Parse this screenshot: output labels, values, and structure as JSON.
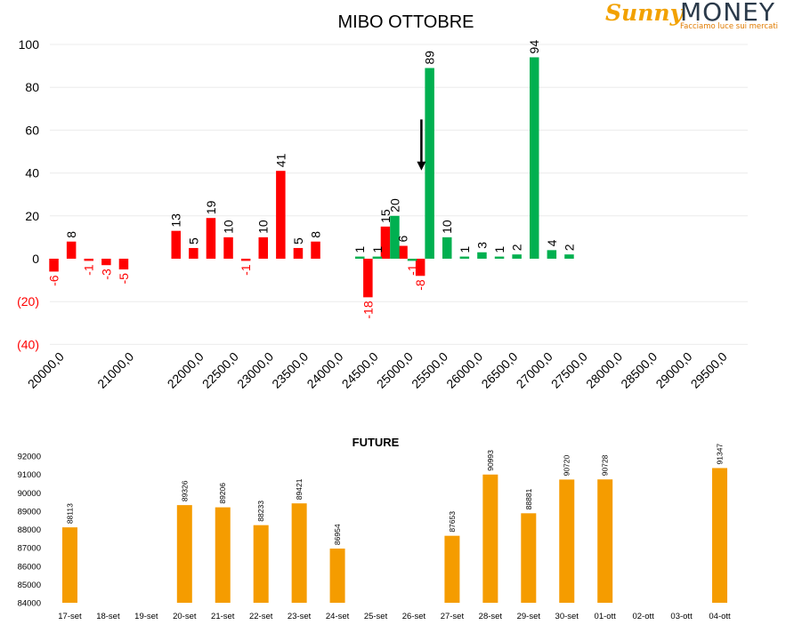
{
  "logo": {
    "brand_part1": "Sunny",
    "brand_part2": "MONEY",
    "tagline": "Facciamo luce sui mercati"
  },
  "colors": {
    "put": "#ff0000",
    "call": "#00b050",
    "future": "#f59c00",
    "negative_label": "#ff0000",
    "text": "#000000",
    "grid": "#ececec"
  },
  "chart_data": [
    {
      "type": "bar",
      "title": "MIBO OTTOBRE",
      "xlabel": "",
      "ylabel": "",
      "ylim": [
        -40,
        100
      ],
      "yticks": [
        {
          "value": 100,
          "label": "100"
        },
        {
          "value": 80,
          "label": "80"
        },
        {
          "value": 60,
          "label": "60"
        },
        {
          "value": 40,
          "label": "40"
        },
        {
          "value": 20,
          "label": "20"
        },
        {
          "value": 0,
          "label": "0"
        },
        {
          "value": -20,
          "label": "(20)"
        },
        {
          "value": -40,
          "label": "(40)"
        }
      ],
      "categories": [
        "20000,0",
        "20250,0",
        "20500,0",
        "20750,0",
        "21000,0",
        "21250,0",
        "21500,0",
        "21750,0",
        "22000,0",
        "22250,0",
        "22500,0",
        "22750,0",
        "23000,0",
        "23250,0",
        "23500,0",
        "23750,0",
        "24000,0",
        "24250,0",
        "24500,0",
        "24750,0",
        "25000,0",
        "25250,0",
        "25500,0",
        "25750,0",
        "26000,0",
        "26250,0",
        "26500,0",
        "26750,0",
        "27000,0",
        "27250,0",
        "27500,0",
        "27750,0",
        "28000,0",
        "28250,0",
        "28500,0",
        "28750,0",
        "29000,0",
        "29250,0",
        "29500,0",
        "29750,0"
      ],
      "xtick_labels": [
        "20000,0",
        "21000,0",
        "22000,0",
        "22500,0",
        "23000,0",
        "23500,0",
        "24000,0",
        "24500,0",
        "25000,0",
        "25500,0",
        "26000,0",
        "26500,0",
        "27000,0",
        "27500,0",
        "28000,0",
        "28500,0",
        "29000,0",
        "29500,0"
      ],
      "series": [
        {
          "name": "",
          "color_key": "put",
          "values": [
            -6,
            8,
            -1,
            -3,
            -5,
            null,
            null,
            13,
            5,
            19,
            10,
            -1,
            10,
            41,
            5,
            8,
            null,
            null,
            -18,
            15,
            6,
            -8,
            null,
            null,
            null,
            null,
            null,
            null,
            null,
            null,
            null,
            null,
            null,
            null,
            null,
            null,
            null,
            null,
            null,
            null
          ]
        },
        {
          "name": "",
          "color_key": "call",
          "values": [
            null,
            null,
            null,
            null,
            null,
            null,
            null,
            null,
            null,
            null,
            null,
            null,
            null,
            null,
            null,
            null,
            null,
            1,
            1,
            20,
            -1,
            89,
            10,
            1,
            3,
            1,
            2,
            94,
            4,
            2,
            null,
            null,
            null,
            null,
            null,
            null,
            null,
            null,
            null,
            null
          ]
        }
      ],
      "annotations": [
        {
          "type": "arrow-down",
          "category": "25250,0",
          "from": 65,
          "to": 42
        }
      ],
      "grid": true,
      "legend": "none"
    },
    {
      "type": "bar",
      "title": "FUTURE",
      "xlabel": "",
      "ylabel": "",
      "ylim": [
        84000,
        92000
      ],
      "yticks": [
        84000,
        85000,
        86000,
        87000,
        88000,
        89000,
        90000,
        91000,
        92000
      ],
      "categories": [
        "17-set",
        "18-set",
        "19-set",
        "20-set",
        "21-set",
        "22-set",
        "23-set",
        "24-set",
        "25-set",
        "26-set",
        "27-set",
        "28-set",
        "29-set",
        "30-set",
        "01-ott",
        "02-ott",
        "03-ott",
        "04-ott"
      ],
      "values": [
        88113,
        null,
        null,
        89326,
        89206,
        88233,
        89421,
        86954,
        null,
        null,
        87653,
        90993,
        88881,
        90720,
        90728,
        null,
        null,
        91347
      ],
      "grid": false,
      "legend": "none"
    }
  ]
}
